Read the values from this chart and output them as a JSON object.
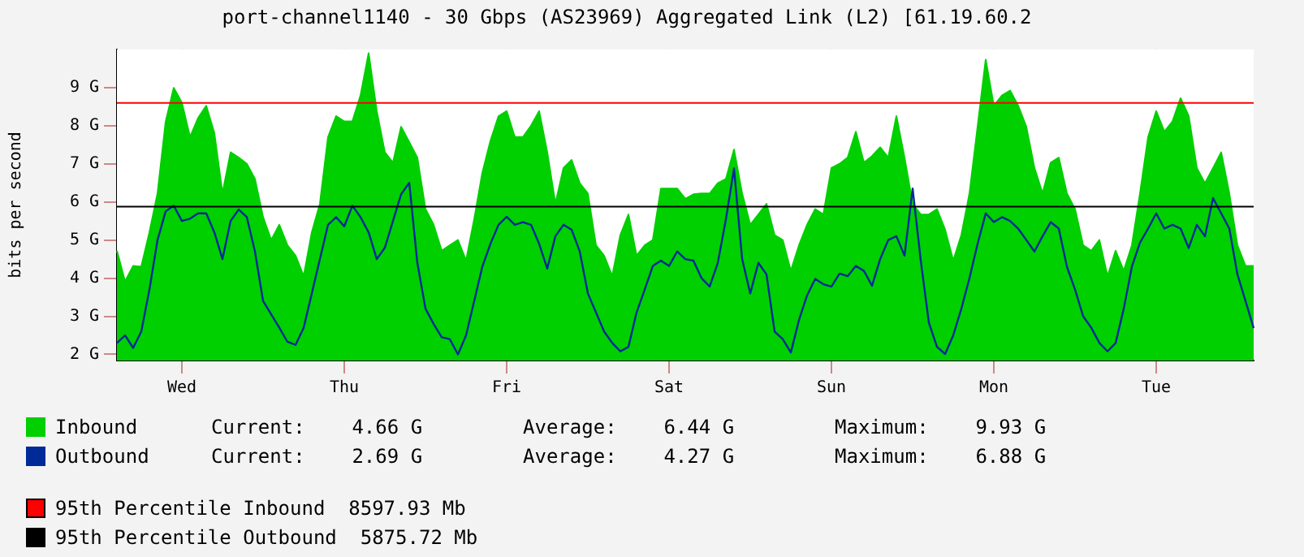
{
  "chart_data": {
    "type": "line",
    "title": "port-channel1140 - 30 Gbps (AS23969) Aggregated Link (L2) [61.19.60.2",
    "ylabel": "bits per second",
    "categories": [
      null,
      null,
      null,
      null,
      null,
      null,
      null,
      null,
      "Wed",
      null,
      null,
      null,
      null,
      null,
      null,
      null,
      null,
      null,
      null,
      null,
      null,
      null,
      null,
      null,
      null,
      null,
      null,
      null,
      "Thu",
      null,
      null,
      null,
      null,
      null,
      null,
      null,
      null,
      null,
      null,
      null,
      null,
      null,
      null,
      null,
      null,
      null,
      null,
      null,
      "Fri",
      null,
      null,
      null,
      null,
      null,
      null,
      null,
      null,
      null,
      null,
      null,
      null,
      null,
      null,
      null,
      null,
      null,
      null,
      null,
      "Sat",
      null,
      null,
      null,
      null,
      null,
      null,
      null,
      null,
      null,
      null,
      null,
      null,
      null,
      null,
      null,
      null,
      null,
      null,
      null,
      "Sun",
      null,
      null,
      null,
      null,
      null,
      null,
      null,
      null,
      null,
      null,
      null,
      null,
      null,
      null,
      null,
      null,
      null,
      null,
      null,
      "Mon",
      null,
      null,
      null,
      null,
      null,
      null,
      null,
      null,
      null,
      null,
      null,
      null,
      null,
      null,
      null,
      null,
      null,
      null,
      null,
      "Tue",
      null,
      null,
      null,
      null,
      null,
      null,
      null,
      null,
      null,
      null,
      null,
      null
    ],
    "ylim": [
      1.84,
      10
    ],
    "yticks": [
      {
        "value": 2,
        "label": "2 G"
      },
      {
        "value": 3,
        "label": "3 G"
      },
      {
        "value": 4,
        "label": "4 G"
      },
      {
        "value": 5,
        "label": "5 G"
      },
      {
        "value": 6,
        "label": "6 G"
      },
      {
        "value": 7,
        "label": "7 G"
      },
      {
        "value": 8,
        "label": "8 G"
      },
      {
        "value": 9,
        "label": "9 G"
      }
    ],
    "grid": true,
    "legend": "bottom",
    "series": [
      {
        "name": "Inbound",
        "type": "area",
        "color": "#00cf00",
        "values": [
          4.72,
          3.91,
          4.32,
          4.3,
          5.2,
          6.22,
          8.1,
          8.99,
          8.6,
          7.7,
          8.2,
          8.52,
          7.8,
          6.22,
          7.3,
          7.16,
          7.0,
          6.6,
          5.6,
          5.0,
          5.4,
          4.86,
          4.59,
          4.05,
          5.2,
          5.95,
          7.7,
          8.25,
          8.11,
          8.11,
          8.79,
          9.9,
          8.38,
          7.3,
          7.03,
          7.97,
          7.57,
          7.16,
          5.81,
          5.4,
          4.72,
          4.86,
          5.0,
          4.46,
          5.54,
          6.76,
          7.6,
          8.25,
          8.38,
          7.7,
          7.7,
          8.0,
          8.38,
          7.3,
          5.95,
          6.89,
          7.1,
          6.49,
          6.22,
          4.86,
          4.59,
          4.05,
          5.13,
          5.67,
          4.59,
          4.86,
          5.0,
          6.35,
          6.35,
          6.35,
          6.08,
          6.2,
          6.22,
          6.22,
          6.49,
          6.6,
          7.37,
          6.22,
          5.4,
          5.67,
          5.95,
          5.13,
          5.0,
          4.19,
          4.86,
          5.4,
          5.81,
          5.67,
          6.89,
          7.0,
          7.16,
          7.84,
          7.03,
          7.2,
          7.43,
          7.16,
          8.25,
          7.16,
          5.95,
          5.67,
          5.67,
          5.81,
          5.27,
          4.46,
          5.13,
          6.22,
          7.97,
          9.73,
          8.52,
          8.79,
          8.92,
          8.52,
          7.97,
          6.89,
          6.22,
          7.03,
          7.16,
          6.22,
          5.81,
          4.86,
          4.72,
          5.0,
          4.05,
          4.72,
          4.19,
          4.86,
          6.22,
          7.7,
          8.38,
          7.84,
          8.11,
          8.72,
          8.25,
          6.89,
          6.49,
          6.89,
          7.3,
          6.22,
          4.86,
          4.32,
          4.32
        ]
      },
      {
        "name": "Outbound",
        "type": "line",
        "color": "#002a97",
        "values": [
          2.3,
          2.5,
          2.17,
          2.6,
          3.7,
          5.0,
          5.75,
          5.9,
          5.5,
          5.56,
          5.7,
          5.7,
          5.2,
          4.5,
          5.5,
          5.8,
          5.6,
          4.7,
          3.4,
          3.05,
          2.7,
          2.33,
          2.25,
          2.7,
          3.6,
          4.5,
          5.4,
          5.6,
          5.36,
          5.9,
          5.6,
          5.2,
          4.5,
          4.8,
          5.5,
          6.2,
          6.5,
          4.4,
          3.2,
          2.8,
          2.45,
          2.4,
          2.0,
          2.5,
          3.4,
          4.3,
          4.9,
          5.4,
          5.61,
          5.4,
          5.47,
          5.4,
          4.9,
          4.25,
          5.1,
          5.4,
          5.27,
          4.7,
          3.6,
          3.1,
          2.6,
          2.3,
          2.08,
          2.2,
          3.1,
          3.7,
          4.32,
          4.46,
          4.32,
          4.7,
          4.5,
          4.46,
          4.0,
          3.78,
          4.4,
          5.54,
          6.88,
          4.5,
          3.6,
          4.4,
          4.1,
          2.6,
          2.4,
          2.05,
          2.9,
          3.55,
          3.98,
          3.84,
          3.78,
          4.12,
          4.05,
          4.32,
          4.19,
          3.8,
          4.5,
          5.0,
          5.1,
          4.59,
          6.35,
          4.46,
          2.83,
          2.2,
          2.01,
          2.5,
          3.2,
          4.0,
          4.9,
          5.7,
          5.47,
          5.6,
          5.5,
          5.3,
          5.0,
          4.7,
          5.1,
          5.47,
          5.3,
          4.3,
          3.7,
          3.0,
          2.7,
          2.3,
          2.08,
          2.3,
          3.2,
          4.3,
          4.93,
          5.3,
          5.7,
          5.3,
          5.4,
          5.3,
          4.79,
          5.4,
          5.1,
          6.1,
          5.7,
          5.3,
          4.1,
          3.4,
          2.69
        ]
      }
    ],
    "ref_lines": [
      {
        "axis": "y",
        "value": 8.59793,
        "label": "95th Percentile Inbound  8597.93 Mb",
        "color": "#ff0000"
      },
      {
        "axis": "y",
        "value": 5.87572,
        "label": "95th Percentile Outbound  5875.72 Mb",
        "color": "#000000"
      }
    ],
    "annotations": [
      "Current:    4.66 G",
      "Average:    6.44 G",
      "Maximum:    9.93 G",
      "Current:    2.69 G",
      "Average:    4.27 G",
      "Maximum:    6.88 G"
    ]
  }
}
